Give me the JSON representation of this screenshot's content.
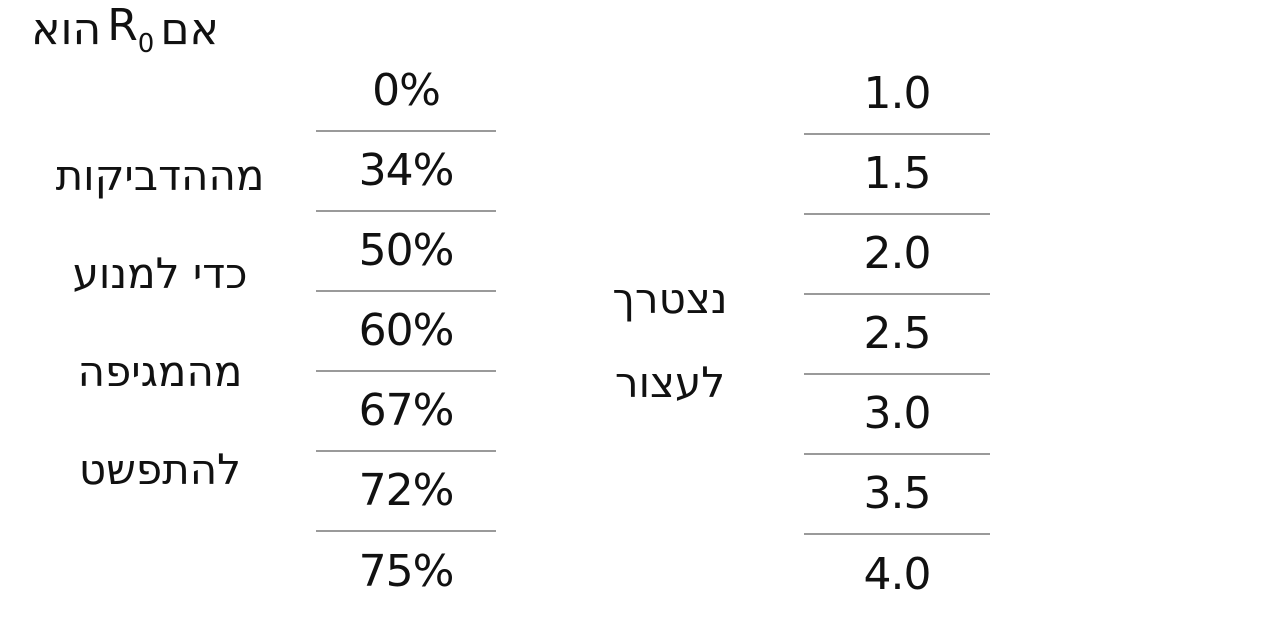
{
  "r0_label": {
    "prefix": "אם",
    "symbol": "R",
    "subscript": "0",
    "suffix": "הוא"
  },
  "r0_values": [
    "1.0",
    "1.5",
    "2.0",
    "2.5",
    "3.0",
    "3.5",
    "4.0"
  ],
  "need_label": [
    "נצטרך",
    "לעצור"
  ],
  "percent_values": [
    "0%",
    "34%",
    "50%",
    "60%",
    "67%",
    "72%",
    "75%"
  ],
  "purpose_label": [
    "מההדביקות",
    "כדי למנוע",
    "מהמגיפה",
    "להתפשט"
  ]
}
